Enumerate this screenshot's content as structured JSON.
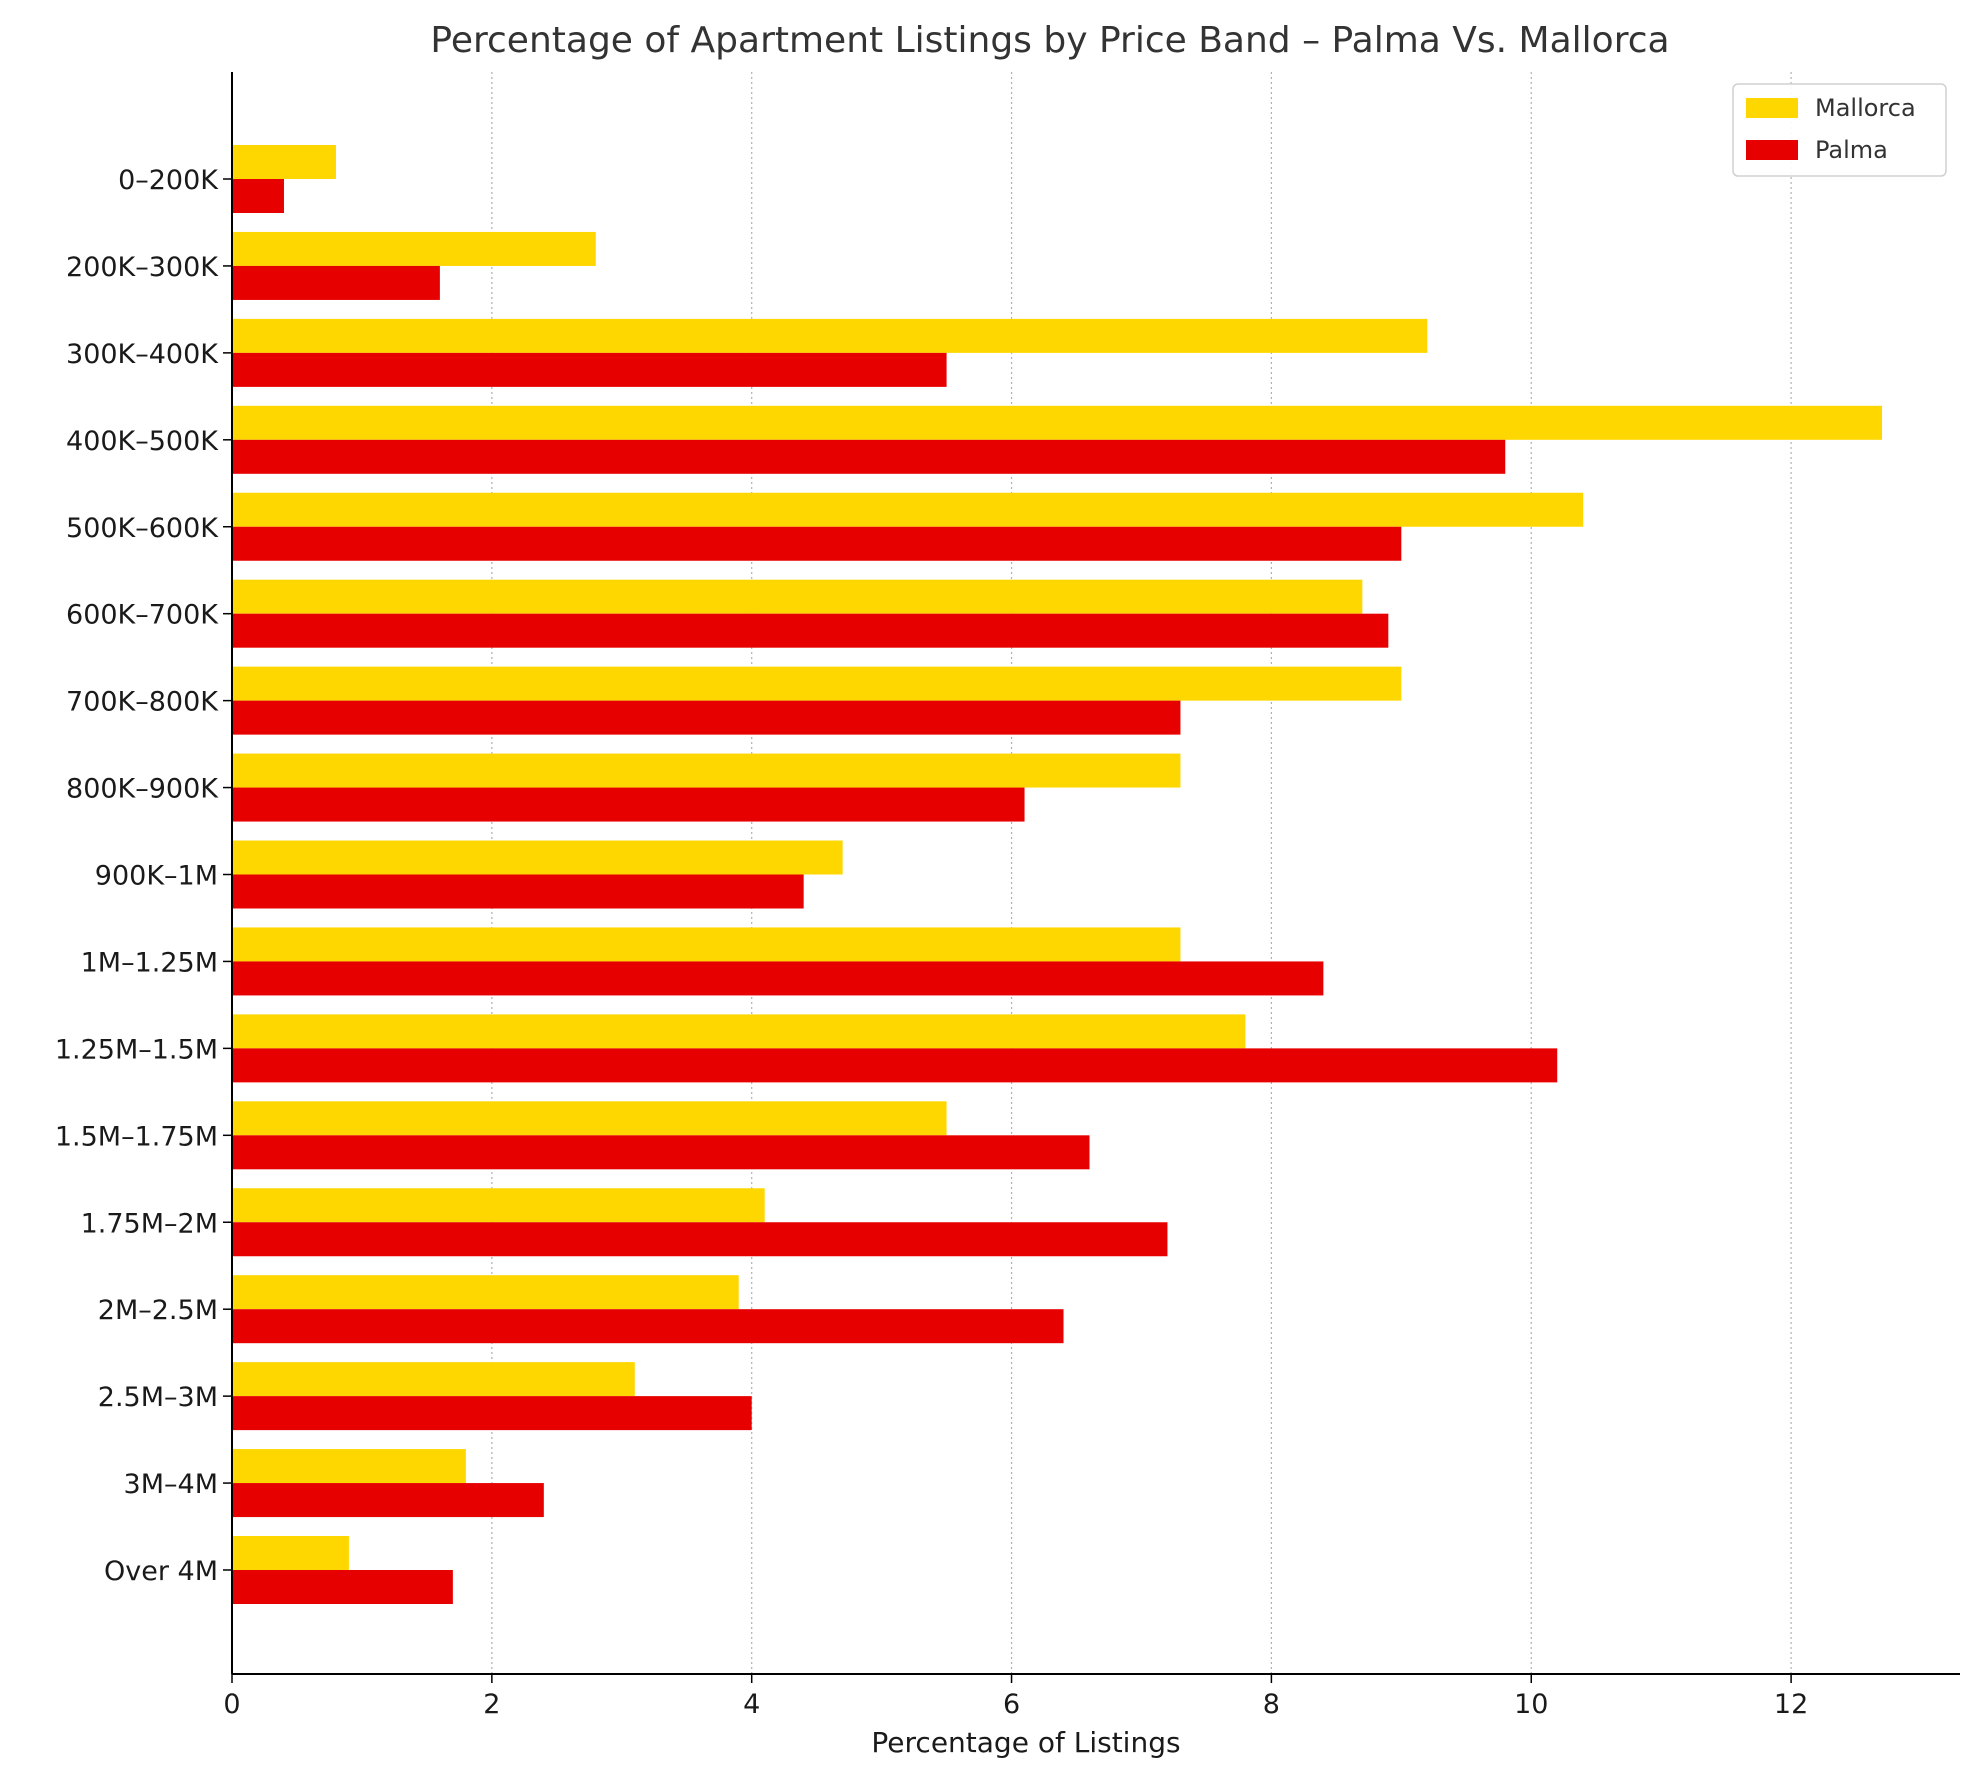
{
  "chart_data": {
    "type": "bar",
    "orientation": "horizontal",
    "title": "Percentage of Apartment Listings by Price Band – Palma Vs. Mallorca",
    "xlabel": "Percentage of Listings",
    "ylabel": "",
    "xlim": [
      0,
      13.3
    ],
    "xticks": [
      0,
      2,
      4,
      6,
      8,
      10,
      12
    ],
    "grid": "vertical dotted",
    "legend_position": "top-right",
    "categories": [
      "0–200K",
      "200K–300K",
      "300K–400K",
      "400K–500K",
      "500K–600K",
      "600K–700K",
      "700K–800K",
      "800K–900K",
      "900K–1M",
      "1M–1.25M",
      "1.25M–1.5M",
      "1.5M–1.75M",
      "1.75M–2M",
      "2M–2.5M",
      "2.5M–3M",
      "3M–4M",
      "Over 4M"
    ],
    "series": [
      {
        "name": "Mallorca",
        "color": "#ffd700",
        "values": [
          0.8,
          2.8,
          9.2,
          12.7,
          10.4,
          8.7,
          9.0,
          7.3,
          4.7,
          7.3,
          7.8,
          5.5,
          4.1,
          3.9,
          3.1,
          1.8,
          0.9
        ]
      },
      {
        "name": "Palma",
        "color": "#e60000",
        "values": [
          0.4,
          1.6,
          5.5,
          9.8,
          9.0,
          8.9,
          7.3,
          6.1,
          4.4,
          8.4,
          10.2,
          6.6,
          7.2,
          6.4,
          4.0,
          2.4,
          1.7
        ]
      }
    ]
  }
}
